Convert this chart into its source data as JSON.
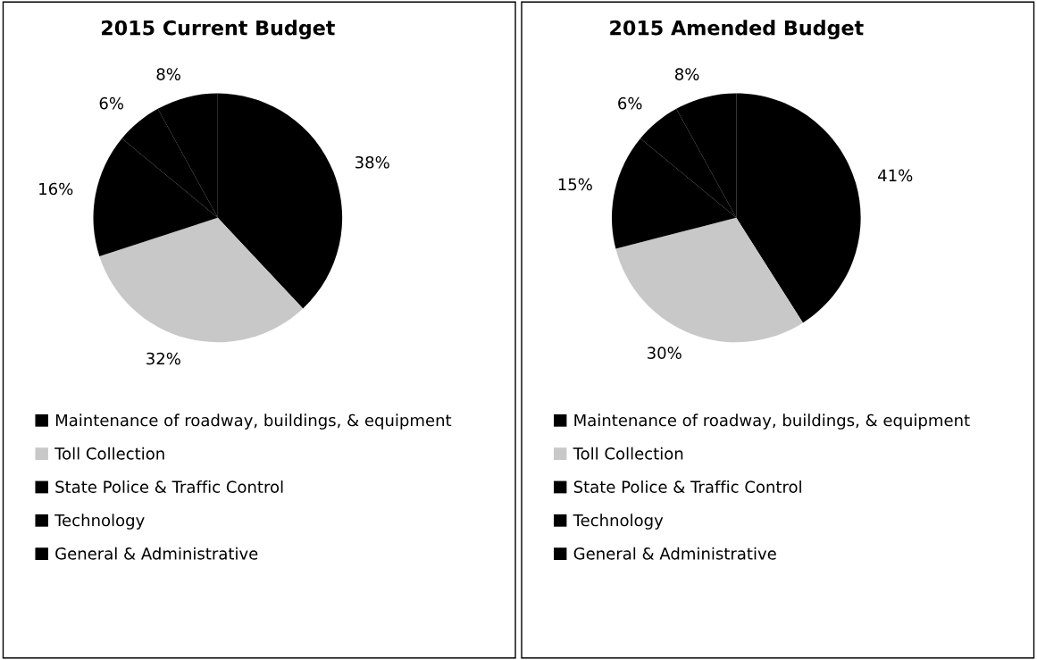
{
  "chart_data": [
    {
      "type": "pie",
      "title": "2015 Current Budget",
      "categories": [
        "Maintenance of roadway, buildings, & equipment",
        "Toll Collection",
        "State Police & Traffic Control",
        "Technology",
        "General & Administrative"
      ],
      "values": [
        38,
        32,
        16,
        6,
        8
      ],
      "value_labels": [
        "38%",
        "32%",
        "16%",
        "6%",
        "8%"
      ],
      "colors": [
        "#000000",
        "#c8c8c8",
        "#000000",
        "#000000",
        "#000000"
      ],
      "legend": "bottom"
    },
    {
      "type": "pie",
      "title": "2015 Amended Budget",
      "categories": [
        "Maintenance of roadway, buildings, & equipment",
        "Toll Collection",
        "State Police & Traffic Control",
        "Technology",
        "General & Administrative"
      ],
      "values": [
        41,
        30,
        15,
        6,
        8
      ],
      "value_labels": [
        "41%",
        "30%",
        "15%",
        "6%",
        "8%"
      ],
      "colors": [
        "#000000",
        "#c8c8c8",
        "#000000",
        "#000000",
        "#000000"
      ],
      "legend": "bottom"
    }
  ]
}
